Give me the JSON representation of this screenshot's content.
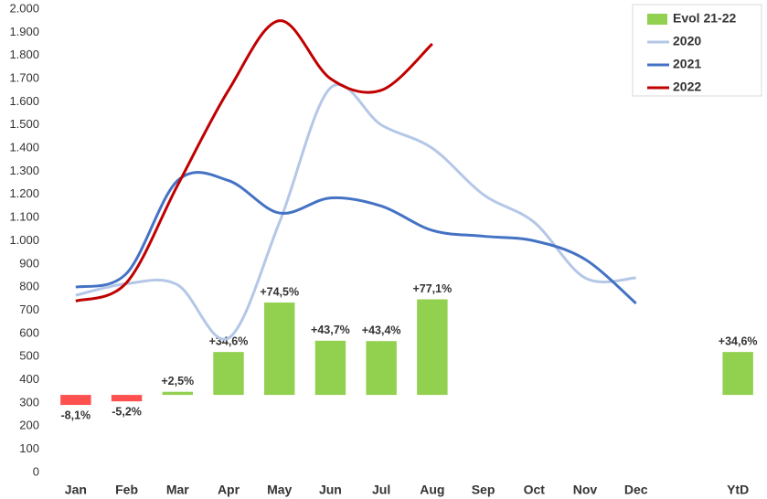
{
  "chart_data": {
    "type": "combo",
    "categories": [
      "Jan",
      "Feb",
      "Mar",
      "Apr",
      "May",
      "Jun",
      "Jul",
      "Aug",
      "Sep",
      "Oct",
      "Nov",
      "Dec",
      null,
      "YtD"
    ],
    "ylim": [
      0,
      2000
    ],
    "yticks": [
      0,
      100,
      200,
      300,
      400,
      500,
      600,
      700,
      800,
      900,
      {
        "value": 1000,
        "label": "1.000"
      },
      {
        "value": 1100,
        "label": "1.100"
      },
      {
        "value": 1200,
        "label": "1.200"
      },
      {
        "value": 1300,
        "label": "1.300"
      },
      {
        "value": 1400,
        "label": "1.400"
      },
      {
        "value": 1500,
        "label": "1.500"
      },
      {
        "value": 1600,
        "label": "1.600"
      },
      {
        "value": 1700,
        "label": "1.700"
      },
      {
        "value": 1800,
        "label": "1.800"
      },
      {
        "value": 1900,
        "label": "1.900"
      },
      {
        "value": 2000,
        "label": "2.000"
      }
    ],
    "y2lim": [
      -62.6,
      311.2
    ],
    "grid": false,
    "legend": "top-right",
    "series": [
      {
        "name": "Evol 21-22",
        "type": "bar",
        "axis": "y2",
        "color": "#92d050",
        "colors": [
          "#ff5050",
          "#ff5050",
          "#92d050",
          "#92d050",
          "#92d050",
          "#92d050",
          "#92d050",
          "#92d050",
          null,
          null,
          null,
          null,
          null,
          "#92d050"
        ],
        "values": [
          -8.1,
          -5.2,
          2.5,
          34.6,
          74.5,
          43.7,
          43.4,
          77.1,
          null,
          null,
          null,
          null,
          null,
          34.6
        ],
        "value_labels": [
          "-8,1%",
          "-5,2%",
          "+2,5%",
          "+34,6%",
          "+74,5%",
          "+43,7%",
          "+43,4%",
          "+77,1%",
          null,
          null,
          null,
          null,
          null,
          "+34,6%"
        ]
      },
      {
        "name": "2020",
        "type": "line",
        "color": "#b4c7e7",
        "values": [
          765,
          815,
          810,
          580,
          1080,
          1660,
          1500,
          1400,
          1200,
          1080,
          840,
          840,
          null,
          null
        ]
      },
      {
        "name": "2021",
        "type": "line",
        "color": "#4472c4",
        "values": [
          800,
          860,
          1260,
          1260,
          1120,
          1185,
          1150,
          1045,
          1020,
          1000,
          920,
          730,
          null,
          null
        ]
      },
      {
        "name": "2022",
        "type": "line",
        "color": "#c00000",
        "values": [
          740,
          820,
          1240,
          1650,
          1950,
          1700,
          1650,
          1850,
          null,
          null,
          null,
          null,
          null,
          null
        ]
      }
    ]
  }
}
